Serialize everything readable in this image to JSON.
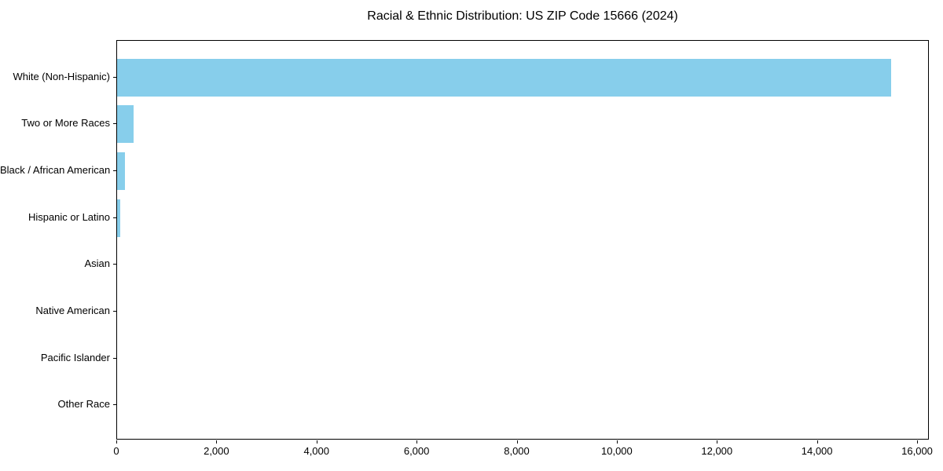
{
  "chart_data": {
    "type": "bar",
    "orientation": "horizontal",
    "title": "Racial & Ethnic Distribution: US ZIP Code 15666 (2024)",
    "categories": [
      "White (Non-Hispanic)",
      "Two or More Races",
      "Black / African American",
      "Hispanic or Latino",
      "Asian",
      "Native American",
      "Pacific Islander",
      "Other Race"
    ],
    "values": [
      15460,
      330,
      150,
      70,
      0,
      0,
      0,
      0
    ],
    "xlabel": "",
    "ylabel": "",
    "xlim": [
      0,
      16235
    ],
    "x_ticks": [
      0,
      2000,
      4000,
      6000,
      8000,
      10000,
      12000,
      14000,
      16000
    ],
    "x_tick_labels": [
      "0",
      "2,000",
      "4,000",
      "6,000",
      "8,000",
      "10,000",
      "12,000",
      "14,000",
      "16,000"
    ],
    "bar_color": "#87CEEB",
    "axis_color": "#000000",
    "text_color": "#000000",
    "background_color": "#ffffff",
    "grid": false,
    "legend_position": "none"
  }
}
